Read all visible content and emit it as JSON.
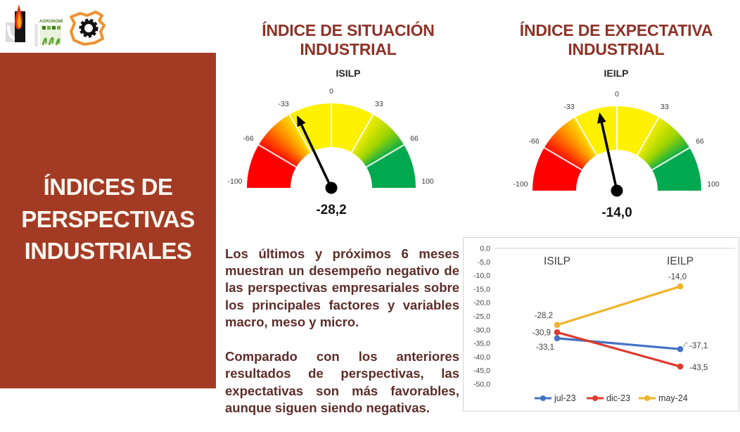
{
  "sidebar": {
    "title": "ÍNDICES DE\nPERSPECTIVAS\nINDUSTRIALES",
    "bg_color": "#A33B24",
    "text_color": "#FCF7F1"
  },
  "logos": [
    {
      "name": "engineering-logo-icon"
    },
    {
      "name": "agronomia-logo-icon",
      "label": "AGRONOMÍA"
    },
    {
      "name": "lapampa-gear-logo-icon"
    }
  ],
  "paragraphs": {
    "p1": "Los últimos y próximos 6 meses muestran un desempeño negativo de las perspectivas empresariales sobre los principales factores y variables macro, meso y micro.",
    "p2": "Comparado con los anteriores resultados de perspectivas, las expectativas son más favorables, aunque siguen siendo negativas."
  },
  "chart_data": [
    {
      "type": "gauge",
      "title": "ÍNDICE DE SITUACIÓN\nINDUSTRIAL",
      "subtitle": "ISILP",
      "value": -28.2,
      "value_label": "-28,2",
      "min": -100,
      "max": 100,
      "ticks": [
        {
          "v": -100,
          "label": "-100"
        },
        {
          "v": -66,
          "label": "-66"
        },
        {
          "v": -33,
          "label": "-33"
        },
        {
          "v": 0,
          "label": "0"
        },
        {
          "v": 33,
          "label": "33"
        },
        {
          "v": 66,
          "label": "66"
        },
        {
          "v": 100,
          "label": "100"
        }
      ],
      "dividers": [
        -66,
        -33,
        0,
        33,
        66
      ],
      "band_colors": {
        "red": "#FF0000",
        "orange": "#FF8A00",
        "yellow": "#FFF100",
        "lime": "#9FD400",
        "green": "#00A94F"
      }
    },
    {
      "type": "gauge",
      "title": "ÍNDICE DE EXPECTATIVA\nINDUSTRIAL",
      "subtitle": "IEILP",
      "value": -14.0,
      "value_label": "-14,0",
      "min": -100,
      "max": 100,
      "ticks": [
        {
          "v": -100,
          "label": "-100"
        },
        {
          "v": -66,
          "label": "-66"
        },
        {
          "v": -33,
          "label": "-33"
        },
        {
          "v": 0,
          "label": "0"
        },
        {
          "v": 33,
          "label": "33"
        },
        {
          "v": 66,
          "label": "66"
        },
        {
          "v": 100,
          "label": "100"
        }
      ],
      "dividers": [
        -66,
        -33,
        0,
        33,
        66
      ],
      "band_colors": {
        "red": "#FF0000",
        "orange": "#FF8A00",
        "yellow": "#FFF100",
        "lime": "#9FD400",
        "green": "#00A94F"
      }
    },
    {
      "type": "line",
      "categories": [
        "ISILP",
        "IEILP"
      ],
      "series": [
        {
          "name": "jul-23",
          "color": "#4472C4",
          "values": [
            -33.1,
            -37.1
          ],
          "point_labels": [
            "-33,1",
            "-37,1"
          ],
          "label_pos": [
            "below-left",
            "right-up"
          ]
        },
        {
          "name": "dic-23",
          "color": "#DE3B2F",
          "values": [
            -30.9,
            -43.5
          ],
          "point_labels": [
            "-30,9",
            "-43,5"
          ],
          "label_pos": [
            "left",
            "right"
          ]
        },
        {
          "name": "may-24",
          "color": "#EFB32A",
          "values": [
            -28.2,
            -14.0
          ],
          "point_labels": [
            "-28,2",
            "-14,0"
          ],
          "label_pos": [
            "above-left",
            "above-right"
          ]
        }
      ],
      "ylim": [
        -50,
        0
      ],
      "yticks": [
        {
          "v": 0,
          "label": "0,0"
        },
        {
          "v": -5,
          "label": "-5,0"
        },
        {
          "v": -10,
          "label": "-10,0"
        },
        {
          "v": -15,
          "label": "-15,0"
        },
        {
          "v": -20,
          "label": "-20,0"
        },
        {
          "v": -25,
          "label": "-25,0"
        },
        {
          "v": -30,
          "label": "-30,0"
        },
        {
          "v": -35,
          "label": "-35,0"
        },
        {
          "v": -40,
          "label": "-40,0"
        },
        {
          "v": -45,
          "label": "-45,0"
        },
        {
          "v": -50,
          "label": "-50,0"
        }
      ],
      "grid": "zero-line-only",
      "legend_position": "bottom"
    }
  ]
}
